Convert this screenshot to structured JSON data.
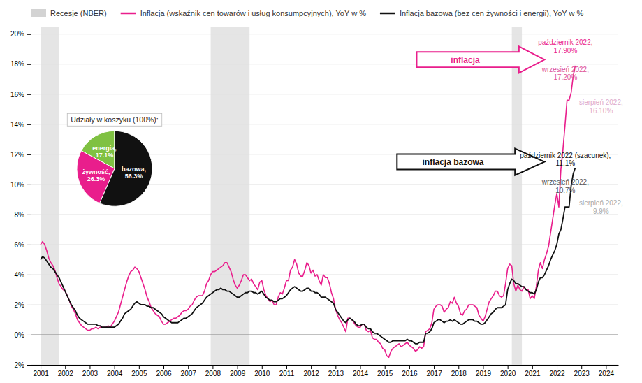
{
  "chart_data": [
    {
      "type": "line",
      "x": [
        2001,
        2001.0833333333333,
        2001.1666666666667,
        2001.25,
        2001.3333333333333,
        2001.4166666666667,
        2001.5,
        2001.5833333333333,
        2001.6666666666667,
        2001.75,
        2001.8333333333333,
        2001.9166666666667,
        2002,
        2002.0833333333333,
        2002.1666666666667,
        2002.25,
        2002.3333333333333,
        2002.4166666666667,
        2002.5,
        2002.5833333333333,
        2002.6666666666667,
        2002.75,
        2002.8333333333333,
        2002.9166666666667,
        2003,
        2003.0833333333333,
        2003.1666666666667,
        2003.25,
        2003.3333333333333,
        2003.4166666666667,
        2003.5,
        2003.5833333333333,
        2003.6666666666667,
        2003.75,
        2003.8333333333333,
        2003.9166666666667,
        2004,
        2004.0833333333333,
        2004.1666666666667,
        2004.25,
        2004.3333333333333,
        2004.4166666666667,
        2004.5,
        2004.5833333333333,
        2004.6666666666667,
        2004.75,
        2004.8333333333333,
        2004.9166666666667,
        2005,
        2005.0833333333333,
        2005.1666666666667,
        2005.25,
        2005.3333333333333,
        2005.4166666666667,
        2005.5,
        2005.5833333333333,
        2005.6666666666667,
        2005.75,
        2005.8333333333333,
        2005.9166666666667,
        2006,
        2006.0833333333333,
        2006.1666666666667,
        2006.25,
        2006.3333333333333,
        2006.4166666666667,
        2006.5,
        2006.5833333333333,
        2006.6666666666667,
        2006.75,
        2006.8333333333333,
        2006.9166666666667,
        2007,
        2007.0833333333333,
        2007.1666666666667,
        2007.25,
        2007.3333333333333,
        2007.4166666666667,
        2007.5,
        2007.5833333333333,
        2007.6666666666667,
        2007.75,
        2007.8333333333333,
        2007.9166666666667,
        2008,
        2008.0833333333333,
        2008.1666666666667,
        2008.25,
        2008.3333333333333,
        2008.4166666666667,
        2008.5,
        2008.5833333333333,
        2008.6666666666667,
        2008.75,
        2008.8333333333333,
        2008.9166666666667,
        2009,
        2009.0833333333333,
        2009.1666666666667,
        2009.25,
        2009.3333333333333,
        2009.4166666666667,
        2009.5,
        2009.5833333333333,
        2009.6666666666667,
        2009.75,
        2009.8333333333333,
        2009.9166666666667,
        2010,
        2010.0833333333333,
        2010.1666666666667,
        2010.25,
        2010.3333333333333,
        2010.4166666666667,
        2010.5,
        2010.5833333333333,
        2010.6666666666667,
        2010.75,
        2010.8333333333333,
        2010.9166666666667,
        2011,
        2011.0833333333333,
        2011.1666666666667,
        2011.25,
        2011.3333333333333,
        2011.4166666666667,
        2011.5,
        2011.5833333333333,
        2011.6666666666667,
        2011.75,
        2011.8333333333333,
        2011.9166666666667,
        2012,
        2012.0833333333333,
        2012.1666666666667,
        2012.25,
        2012.3333333333333,
        2012.4166666666667,
        2012.5,
        2012.5833333333333,
        2012.6666666666667,
        2012.75,
        2012.8333333333333,
        2012.9166666666667,
        2013,
        2013.0833333333333,
        2013.1666666666667,
        2013.25,
        2013.3333333333333,
        2013.4166666666667,
        2013.5,
        2013.5833333333333,
        2013.6666666666667,
        2013.75,
        2013.8333333333333,
        2013.9166666666667,
        2014,
        2014.0833333333333,
        2014.1666666666667,
        2014.25,
        2014.3333333333333,
        2014.4166666666667,
        2014.5,
        2014.5833333333333,
        2014.6666666666667,
        2014.75,
        2014.8333333333333,
        2014.9166666666667,
        2015,
        2015.0833333333333,
        2015.1666666666667,
        2015.25,
        2015.3333333333333,
        2015.4166666666667,
        2015.5,
        2015.5833333333333,
        2015.6666666666667,
        2015.75,
        2015.8333333333333,
        2015.9166666666667,
        2016,
        2016.0833333333333,
        2016.1666666666667,
        2016.25,
        2016.3333333333333,
        2016.4166666666667,
        2016.5,
        2016.5833333333333,
        2016.6666666666667,
        2016.75,
        2016.8333333333333,
        2016.9166666666667,
        2017,
        2017.0833333333333,
        2017.1666666666667,
        2017.25,
        2017.3333333333333,
        2017.4166666666667,
        2017.5,
        2017.5833333333333,
        2017.6666666666667,
        2017.75,
        2017.8333333333333,
        2017.9166666666667,
        2018,
        2018.0833333333333,
        2018.1666666666667,
        2018.25,
        2018.3333333333333,
        2018.4166666666667,
        2018.5,
        2018.5833333333333,
        2018.6666666666667,
        2018.75,
        2018.8333333333333,
        2018.9166666666667,
        2019,
        2019.0833333333333,
        2019.1666666666667,
        2019.25,
        2019.3333333333333,
        2019.4166666666667,
        2019.5,
        2019.5833333333333,
        2019.6666666666667,
        2019.75,
        2019.8333333333333,
        2019.9166666666667,
        2020,
        2020.0833333333333,
        2020.1666666666667,
        2020.25,
        2020.3333333333333,
        2020.4166666666667,
        2020.5,
        2020.5833333333333,
        2020.6666666666667,
        2020.75,
        2020.8333333333333,
        2020.9166666666667,
        2021,
        2021.0833333333333,
        2021.1666666666667,
        2021.25,
        2021.3333333333333,
        2021.4166666666667,
        2021.5,
        2021.5833333333333,
        2021.6666666666667,
        2021.75,
        2021.8333333333333,
        2021.9166666666667,
        2022,
        2022.0833333333333,
        2022.1666666666667,
        2022.25,
        2022.3333333333333,
        2022.4166666666667,
        2022.5,
        2022.5833333333333,
        2022.6666666666667,
        2022.75
      ],
      "xlim": [
        2000.6,
        2024.5
      ],
      "xticks": [
        2001,
        2002,
        2003,
        2004,
        2005,
        2006,
        2007,
        2008,
        2009,
        2010,
        2011,
        2012,
        2013,
        2014,
        2015,
        2016,
        2017,
        2018,
        2019,
        2020,
        2021,
        2022,
        2023,
        2024
      ],
      "ylim": [
        -0.02,
        0.205
      ],
      "yticks": [
        {
          "value": -0.02,
          "label": "-2%"
        },
        {
          "value": 0.0,
          "label": "0%"
        },
        {
          "value": 0.02,
          "label": "2%"
        },
        {
          "value": 0.04,
          "label": "4%"
        },
        {
          "value": 0.06,
          "label": "6%"
        },
        {
          "value": 0.08,
          "label": "8%"
        },
        {
          "value": 0.1,
          "label": "10%"
        },
        {
          "value": 0.12,
          "label": "12%"
        },
        {
          "value": 0.14,
          "label": "14%"
        },
        {
          "value": 0.16,
          "label": "16%"
        },
        {
          "value": 0.18,
          "label": "18%"
        },
        {
          "value": 0.2,
          "label": "20%"
        }
      ],
      "grid": true,
      "legend": "upper left",
      "series": [
        {
          "name": "Inflacja (wskaźnik cen towarów i usług konsumpcyjnych), YoY w %",
          "color": "#e91e8c",
          "values": [
            0.06,
            0.062,
            0.06,
            0.056,
            0.051,
            0.048,
            0.046,
            0.043,
            0.038,
            0.034,
            0.032,
            0.03,
            0.029,
            0.026,
            0.023,
            0.019,
            0.017,
            0.014,
            0.01,
            0.008,
            0.006,
            0.005,
            0.004,
            0.003,
            0.003,
            0.004,
            0.004,
            0.005,
            0.004,
            0.005,
            0.005,
            0.005,
            0.005,
            0.006,
            0.005,
            0.007,
            0.009,
            0.012,
            0.015,
            0.02,
            0.025,
            0.03,
            0.035,
            0.039,
            0.042,
            0.043,
            0.045,
            0.044,
            0.042,
            0.038,
            0.034,
            0.03,
            0.025,
            0.022,
            0.018,
            0.016,
            0.014,
            0.013,
            0.012,
            0.009,
            0.007,
            0.007,
            0.008,
            0.009,
            0.01,
            0.011,
            0.011,
            0.012,
            0.013,
            0.015,
            0.016,
            0.016,
            0.017,
            0.019,
            0.02,
            0.023,
            0.025,
            0.026,
            0.026,
            0.026,
            0.029,
            0.034,
            0.036,
            0.04,
            0.042,
            0.042,
            0.043,
            0.044,
            0.045,
            0.046,
            0.048,
            0.048,
            0.045,
            0.042,
            0.037,
            0.033,
            0.031,
            0.033,
            0.036,
            0.04,
            0.04,
            0.038,
            0.036,
            0.037,
            0.034,
            0.032,
            0.03,
            0.035,
            0.036,
            0.03,
            0.026,
            0.024,
            0.022,
            0.023,
            0.02,
            0.02,
            0.025,
            0.028,
            0.027,
            0.031,
            0.036,
            0.036,
            0.043,
            0.045,
            0.05,
            0.047,
            0.041,
            0.039,
            0.039,
            0.043,
            0.048,
            0.046,
            0.041,
            0.043,
            0.039,
            0.04,
            0.036,
            0.033,
            0.04,
            0.038,
            0.038,
            0.034,
            0.028,
            0.024,
            0.017,
            0.013,
            0.01,
            0.008,
            0.005,
            0.002,
            0.011,
            0.011,
            0.01,
            0.008,
            0.006,
            0.005,
            0.005,
            0.007,
            0.007,
            0.003,
            0.002,
            0.003,
            -0.002,
            -0.003,
            -0.003,
            -0.005,
            -0.006,
            -0.009,
            -0.01,
            -0.014,
            -0.015,
            -0.011,
            -0.009,
            -0.008,
            -0.007,
            -0.006,
            -0.008,
            -0.007,
            -0.006,
            -0.005,
            -0.007,
            -0.008,
            -0.009,
            -0.011,
            -0.01,
            -0.008,
            -0.009,
            -0.008,
            0.002,
            0.003,
            0.004,
            0.008,
            0.017,
            0.019,
            0.02,
            0.02,
            0.019,
            0.015,
            0.017,
            0.018,
            0.022,
            0.021,
            0.025,
            0.021,
            0.019,
            0.014,
            0.013,
            0.016,
            0.017,
            0.02,
            0.02,
            0.02,
            0.019,
            0.018,
            0.013,
            0.011,
            0.009,
            0.012,
            0.017,
            0.022,
            0.024,
            0.026,
            0.029,
            0.029,
            0.026,
            0.025,
            0.026,
            0.034,
            0.044,
            0.047,
            0.046,
            0.034,
            0.029,
            0.033,
            0.03,
            0.029,
            0.032,
            0.03,
            0.03,
            0.024,
            0.026,
            0.024,
            0.032,
            0.043,
            0.048,
            0.044,
            0.05,
            0.054,
            0.059,
            0.068,
            0.077,
            0.086,
            0.094,
            0.085,
            0.11,
            0.123,
            0.139,
            0.156,
            0.156,
            0.161,
            0.172,
            0.179
          ]
        },
        {
          "name": "Inflacja bazowa (bez cen żywności i energii), YoY w %",
          "color": "#111111",
          "values": [
            0.05,
            0.052,
            0.051,
            0.049,
            0.047,
            0.045,
            0.044,
            0.042,
            0.04,
            0.038,
            0.035,
            0.032,
            0.029,
            0.026,
            0.023,
            0.02,
            0.018,
            0.016,
            0.013,
            0.011,
            0.01,
            0.009,
            0.008,
            0.007,
            0.007,
            0.007,
            0.007,
            0.007,
            0.006,
            0.006,
            0.005,
            0.005,
            0.005,
            0.005,
            0.005,
            0.005,
            0.005,
            0.006,
            0.007,
            0.009,
            0.011,
            0.014,
            0.015,
            0.016,
            0.017,
            0.019,
            0.021,
            0.022,
            0.021,
            0.02,
            0.02,
            0.02,
            0.019,
            0.019,
            0.018,
            0.018,
            0.017,
            0.016,
            0.015,
            0.014,
            0.012,
            0.011,
            0.01,
            0.009,
            0.008,
            0.008,
            0.008,
            0.008,
            0.009,
            0.01,
            0.011,
            0.011,
            0.012,
            0.013,
            0.014,
            0.016,
            0.018,
            0.019,
            0.02,
            0.021,
            0.023,
            0.025,
            0.026,
            0.027,
            0.028,
            0.029,
            0.03,
            0.03,
            0.031,
            0.03,
            0.03,
            0.029,
            0.029,
            0.028,
            0.027,
            0.026,
            0.025,
            0.025,
            0.026,
            0.027,
            0.028,
            0.028,
            0.029,
            0.029,
            0.028,
            0.028,
            0.027,
            0.028,
            0.029,
            0.027,
            0.025,
            0.024,
            0.023,
            0.023,
            0.022,
            0.022,
            0.023,
            0.024,
            0.024,
            0.025,
            0.026,
            0.028,
            0.03,
            0.031,
            0.032,
            0.031,
            0.03,
            0.029,
            0.029,
            0.03,
            0.031,
            0.031,
            0.029,
            0.029,
            0.028,
            0.028,
            0.027,
            0.025,
            0.025,
            0.025,
            0.024,
            0.023,
            0.022,
            0.021,
            0.017,
            0.015,
            0.013,
            0.011,
            0.009,
            0.008,
            0.01,
            0.011,
            0.01,
            0.009,
            0.007,
            0.006,
            0.006,
            0.007,
            0.007,
            0.005,
            0.004,
            0.004,
            0.002,
            0.001,
            0.001,
            0,
            -0.001,
            -0.002,
            -0.003,
            -0.004,
            -0.005,
            -0.005,
            -0.004,
            -0.004,
            -0.004,
            -0.004,
            -0.004,
            -0.004,
            -0.004,
            -0.003,
            -0.004,
            -0.004,
            -0.005,
            -0.006,
            -0.006,
            -0.005,
            -0.005,
            -0.005,
            0.001,
            0.001,
            0.002,
            0.004,
            0.008,
            0.009,
            0.01,
            0.01,
            0.009,
            0.008,
            0.009,
            0.009,
            0.01,
            0.009,
            0.01,
            0.009,
            0.008,
            0.007,
            0.007,
            0.008,
            0.009,
            0.01,
            0.01,
            0.01,
            0.009,
            0.009,
            0.008,
            0.007,
            0.007,
            0.008,
            0.01,
            0.012,
            0.014,
            0.015,
            0.017,
            0.018,
            0.018,
            0.018,
            0.019,
            0.02,
            0.03,
            0.034,
            0.037,
            0.036,
            0.034,
            0.034,
            0.033,
            0.032,
            0.032,
            0.03,
            0.029,
            0.028,
            0.028,
            0.027,
            0.03,
            0.035,
            0.038,
            0.038,
            0.04,
            0.043,
            0.046,
            0.05,
            0.053,
            0.056,
            0.06,
            0.067,
            0.07,
            0.077,
            0.085,
            0.085,
            0.085,
            0.099,
            0.107,
            0.111
          ]
        }
      ],
      "bands": {
        "name": "Recesje (NBER)",
        "color": "#d3d3d3",
        "periods": [
          [
            2001.0,
            2001.75
          ],
          [
            2007.92,
            2009.5
          ],
          [
            2020.17,
            2020.58
          ]
        ]
      },
      "arrows": [
        {
          "text": "inflacja",
          "x0": 2016.3,
          "x1": 2021.5,
          "y": 0.183,
          "color": "#e91e8c"
        },
        {
          "text": "inflacja bazowa",
          "x0": 2015.5,
          "x1": 2021.5,
          "y": 0.115,
          "color": "#111111"
        }
      ],
      "annotations": [
        {
          "text": "październik 2022,\n17.90%",
          "x": 2022.35,
          "y": 0.197,
          "color": "#e91e8c"
        },
        {
          "text": "wrzesień 2022,\n17.20%",
          "x": 2022.35,
          "y": 0.179,
          "color": "#dd5599"
        },
        {
          "text": "sierpień 2022,\n16.10%",
          "x": 2023.8,
          "y": 0.157,
          "color": "#ddaacc"
        },
        {
          "text": "październik 2022 (szacunek),\n11.1%",
          "x": 2022.35,
          "y": 0.122,
          "color": "#111111"
        },
        {
          "text": "wrzesień 2022,\n10.7%",
          "x": 2022.35,
          "y": 0.104,
          "color": "#555555"
        },
        {
          "text": "sierpień 2022,\n9.9%",
          "x": 2023.8,
          "y": 0.09,
          "color": "#aaaaaa"
        }
      ]
    },
    {
      "type": "pie",
      "title": "Udziały w koszyku (100%):",
      "values": [
        17.1,
        26.3,
        56.3
      ],
      "value_labels": [
        "energia,\n17.1%",
        "żywność,\n26.3%",
        "bazowa,\n56.3%"
      ],
      "colors": [
        "#7fc142",
        "#e91e8c",
        "#111111"
      ],
      "data_labels": true
    }
  ]
}
